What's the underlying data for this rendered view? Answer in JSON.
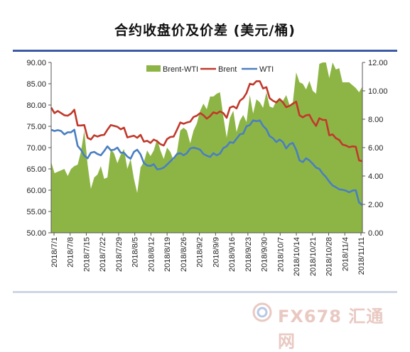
{
  "title": "合约收盘价及价差 (美元/桶)",
  "watermark": "FX678 汇通网",
  "colors": {
    "spread": "#8db545",
    "brent": "#c0392b",
    "wti": "#4a7fc1",
    "axis": "#555555"
  },
  "chart_data": {
    "type": "line",
    "left_axis": {
      "ylim": [
        50,
        90
      ],
      "ticks": [
        "50.00",
        "55.00",
        "60.00",
        "65.00",
        "70.00",
        "75.00",
        "80.00",
        "85.00",
        "90.00"
      ]
    },
    "right_axis": {
      "ylim": [
        0,
        12
      ],
      "ticks": [
        "0.00",
        "2.00",
        "4.00",
        "6.00",
        "8.00",
        "10.00",
        "12.00"
      ]
    },
    "x_ticks": [
      "2018/7/1",
      "2018/7/8",
      "2018/7/15",
      "2018/7/22",
      "2018/7/29",
      "2018/8/5",
      "2018/8/12",
      "2018/8/19",
      "2018/8/26",
      "2018/9/2",
      "2018/9/9",
      "2018/9/16",
      "2018/9/23",
      "2018/9/30",
      "2018/10/7",
      "2018/10/14",
      "2018/10/21",
      "2018/10/28",
      "2018/11/4",
      "2018/11/11"
    ],
    "legend": [
      "Brent-WTI",
      "Brent",
      "WTI"
    ],
    "legend_position": "top",
    "series": [
      {
        "name": "Brent",
        "axis": "left",
        "values": [
          79.4,
          78.1,
          78.6,
          78.1,
          77.6,
          77.5,
          78.0,
          78.9,
          75.2,
          75.2,
          75.3,
          72.3,
          71.9,
          72.9,
          72.6,
          72.9,
          73.0,
          74.2,
          75.3,
          75.1,
          74.9,
          74.3,
          74.7,
          72.4,
          72.6,
          72.8,
          72.3,
          73.0,
          71.4,
          71.6,
          71.1,
          71.9,
          71.5,
          70.8,
          70.5,
          72.0,
          72.5,
          72.6,
          74.2,
          75.9,
          75.6,
          75.9,
          76.1,
          77.2,
          77.5,
          78.1,
          77.6,
          76.8,
          77.4,
          78.3,
          78.0,
          78.5,
          78.1,
          77.0,
          79.4,
          79.7,
          79.2,
          81.0,
          81.6,
          82.8,
          85.0,
          84.8,
          85.6,
          85.6,
          83.9,
          84.2,
          81.6,
          81.0,
          80.6,
          81.4,
          80.6,
          79.5,
          79.8,
          80.3,
          80.8,
          77.6,
          77.1,
          77.6,
          77.7,
          76.2,
          75.1,
          76.9,
          76.5,
          76.5,
          72.9,
          73.1,
          72.2,
          71.8,
          70.7,
          70.5,
          70.1,
          70.3,
          70.2,
          67.0,
          66.8
        ],
        "values_note": ""
      },
      {
        "name": "WTI",
        "axis": "left",
        "values": [
          74.2,
          73.9,
          74.1,
          73.9,
          73.1,
          73.6,
          73.6,
          74.2,
          70.4,
          69.5,
          68.1,
          67.5,
          68.8,
          69.0,
          68.5,
          68.2,
          69.2,
          70.3,
          69.4,
          69.5,
          70.0,
          68.8,
          68.8,
          67.9,
          67.4,
          69.0,
          69.5,
          68.4,
          66.4,
          65.8,
          65.7,
          66.1,
          64.9,
          65.0,
          65.3,
          66.0,
          66.8,
          67.5,
          68.5,
          68.7,
          68.2,
          68.7,
          69.8,
          70.0,
          69.8,
          69.5,
          68.5,
          68.1,
          67.8,
          68.7,
          68.2,
          68.6,
          69.9,
          70.3,
          71.3,
          71.1,
          72.1,
          73.1,
          73.3,
          75.0,
          75.3,
          76.4,
          76.2,
          76.4,
          75.1,
          74.3,
          72.7,
          72.2,
          71.3,
          71.9,
          71.3,
          69.8,
          70.8,
          71.1,
          69.5,
          67.0,
          66.6,
          67.5,
          67.0,
          66.2,
          65.3,
          65.0,
          63.9,
          63.1,
          62.0,
          61.1,
          60.7,
          60.2,
          60.1,
          59.9,
          59.5,
          59.9,
          60.0,
          57.1,
          56.5
        ]
      },
      {
        "name": "Brent-WTI",
        "axis": "right",
        "type": "area",
        "values": [
          5.0,
          4.2,
          4.3,
          4.4,
          4.5,
          4.0,
          4.5,
          4.7,
          4.8,
          5.7,
          7.2,
          4.8,
          3.1,
          3.9,
          4.1,
          4.7,
          3.8,
          3.9,
          5.9,
          5.6,
          4.9,
          5.5,
          5.9,
          4.5,
          5.2,
          3.8,
          2.8,
          4.6,
          5.0,
          5.8,
          5.4,
          5.8,
          6.6,
          5.8,
          5.2,
          6.0,
          5.7,
          5.1,
          5.7,
          7.2,
          7.4,
          7.2,
          6.3,
          7.2,
          7.7,
          8.6,
          9.1,
          8.7,
          9.6,
          9.6,
          9.8,
          9.9,
          8.2,
          6.7,
          8.1,
          8.6,
          7.1,
          7.9,
          8.3,
          7.8,
          9.7,
          8.4,
          9.4,
          9.2,
          8.8,
          9.9,
          8.9,
          8.8,
          9.3,
          9.5,
          9.3,
          9.7,
          9.0,
          9.2,
          11.3,
          10.6,
          10.5,
          10.1,
          10.7,
          10.0,
          9.8,
          11.9,
          12.6,
          13.4,
          10.9,
          12.0,
          11.5,
          11.6,
          10.6,
          10.6,
          10.6,
          10.4,
          10.2,
          9.9,
          10.3
        ],
        "values_note": ""
      }
    ]
  }
}
